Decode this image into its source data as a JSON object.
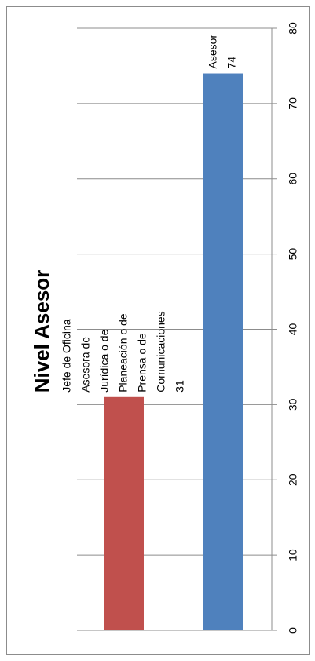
{
  "chart_data": {
    "type": "bar",
    "orientation": "horizontal",
    "rotated": "90deg-clockwise",
    "title": "Nivel Asesor",
    "categories": [
      "Jefe de Oficina Asesora de Jurídica o de Planeación o de Prensa o de Comunicaciones",
      "Asesor"
    ],
    "values": [
      31,
      74
    ],
    "data_labels": [
      [
        "Jefe de Oficina",
        "Asesora de",
        "Jurídica o de",
        "Planeación o de",
        "Prensa o de",
        "Comunicaciones",
        "31"
      ],
      [
        "Asesor",
        "74"
      ]
    ],
    "colors": [
      "#c0504d",
      "#4f81bd"
    ],
    "xlim": [
      0,
      80
    ],
    "ticks": [
      "0",
      "10",
      "20",
      "30",
      "40",
      "50",
      "60",
      "70",
      "80"
    ],
    "grid": true,
    "legend": "none"
  }
}
